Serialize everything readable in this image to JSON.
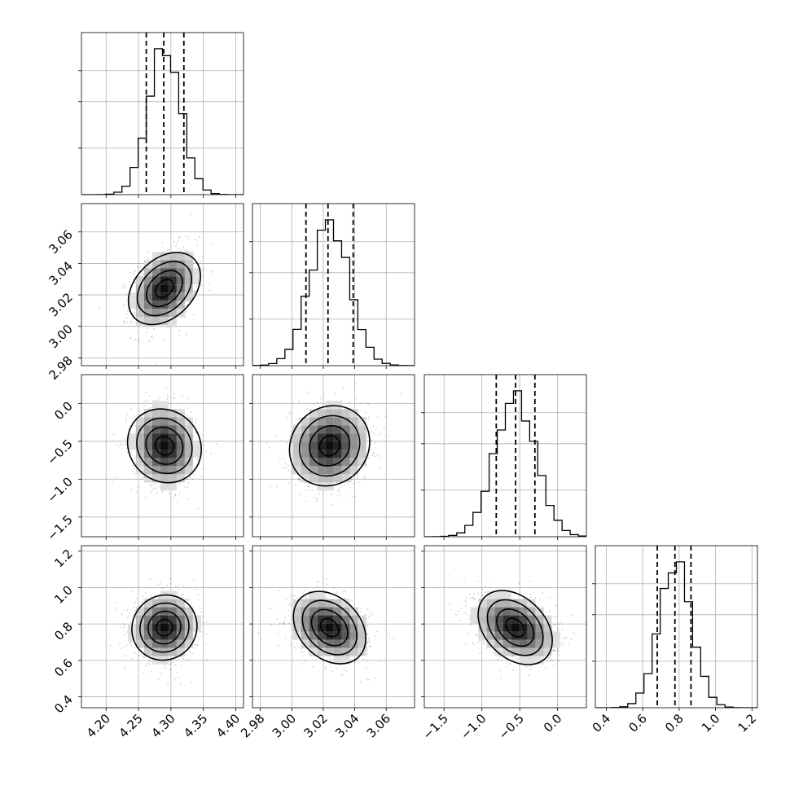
{
  "chart_data": {
    "type": "corner",
    "parameters": [
      {
        "range": [
          4.162,
          4.412
        ],
        "ticks": [
          4.2,
          4.25,
          4.3,
          4.35,
          4.4
        ],
        "tick_labels": [
          "4.20",
          "4.25",
          "4.30",
          "4.35",
          "4.40"
        ],
        "mean": 4.29,
        "sigma": 0.025,
        "quantiles": [
          4.262,
          4.289,
          4.32
        ],
        "hist_peak": 1.0
      },
      {
        "range": [
          2.975,
          3.078
        ],
        "ticks": [
          2.98,
          3.0,
          3.02,
          3.04,
          3.06
        ],
        "tick_labels": [
          "2.98",
          "3.00",
          "3.02",
          "3.04",
          "3.06"
        ],
        "mean": 3.024,
        "sigma": 0.0125,
        "quantiles": [
          3.009,
          3.023,
          3.039
        ],
        "hist_peak": 1.0
      },
      {
        "range": [
          -1.76,
          0.38
        ],
        "ticks": [
          -1.5,
          -1.0,
          -0.5,
          0.0
        ],
        "tick_labels": [
          "−1.5",
          "−1.0",
          "−0.5",
          "0.0"
        ],
        "mean": -0.56,
        "sigma": 0.27,
        "quantiles": [
          -0.81,
          -0.555,
          -0.3
        ],
        "hist_peak": 1.0
      },
      {
        "range": [
          0.34,
          1.23
        ],
        "ticks": [
          0.4,
          0.6,
          0.8,
          1.0,
          1.2
        ],
        "tick_labels": [
          "0.4",
          "0.6",
          "0.8",
          "1.0",
          "1.2"
        ],
        "mean": 0.78,
        "sigma": 0.09,
        "quantiles": [
          0.68,
          0.777,
          0.865
        ],
        "hist_peak": 1.0
      }
    ],
    "correlations": [
      {
        "row": 1,
        "col": 0,
        "rho": 0.35
      },
      {
        "row": 2,
        "col": 0,
        "rho": -0.1
      },
      {
        "row": 2,
        "col": 1,
        "rho": 0.1
      },
      {
        "row": 3,
        "col": 0,
        "rho": 0.05
      },
      {
        "row": 3,
        "col": 1,
        "rho": -0.3
      },
      {
        "row": 3,
        "col": 2,
        "rho": -0.35
      }
    ],
    "contour_levels_sigma": [
      0.5,
      1.0,
      1.5,
      2.0
    ],
    "histogram_bins": 20,
    "grid": true,
    "legend": "none",
    "colors": {
      "marks": "#000000",
      "grid": "#b0b0b0",
      "background": "#ffffff"
    }
  }
}
